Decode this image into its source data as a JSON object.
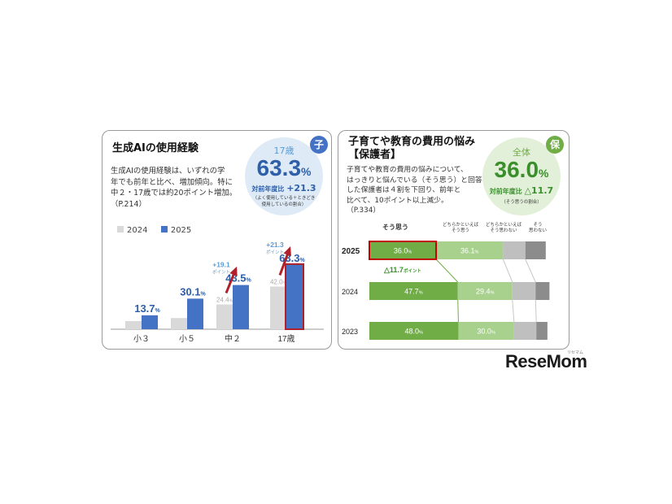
{
  "left": {
    "title": "生成AIの使用経験",
    "badge": "子",
    "description": [
      "生成AIの使用経験は、いずれの学",
      "年でも前年と比べ、増加傾向。特に",
      "中２・17歳では約20ポイント増加。",
      "（P.214）"
    ],
    "highlight": {
      "label": "17歳",
      "value": "63.3",
      "unit": "%",
      "compare_label": "対前年度比",
      "compare_value": "+21.3",
      "note": [
        "（よく使用している＋ときどき",
        "使用しているの割合）"
      ]
    },
    "legend": [
      "2024",
      "2025"
    ],
    "colors": {
      "y2024": "#d9d9d9",
      "y2025": "#4472c4",
      "label2025": "#2e5fa8",
      "arrow": "#b0202a",
      "increase": "#5b9bd5",
      "circle": "#deebf7",
      "badge": "#4472c4"
    }
  },
  "right": {
    "title": [
      "子育てや教育の費用の悩み",
      "【保護者】"
    ],
    "badge": "保",
    "description": [
      "子育てや教育の費用の悩みについて、",
      "はっきりと悩んでいる（そう思う）と回答",
      "した保護者は４割を下回り、前年と",
      "比べて、10ポイント以上減少。",
      "（P.334）"
    ],
    "highlight": {
      "label": "全体",
      "value": "36.0",
      "unit": "%",
      "compare_label": "対前年度比",
      "compare_value": "△11.7",
      "note": "（そう思うの割合）"
    },
    "headers": [
      "そう思う",
      "どちらかといえば\nそう思う",
      "どちらかといえば\nそう思わない",
      "そう\n思わない"
    ],
    "change_label": "△11.7",
    "change_unit": "ポイント",
    "colors": {
      "c1": "#70ad47",
      "c2": "#a9d18e",
      "c3": "#bfbfbf",
      "c4": "#8c8c8c",
      "highlight": "#c00000",
      "circle": "#e2f0d9",
      "badge": "#70ad47",
      "value": "#3a8f2c"
    }
  },
  "chart_data": [
    {
      "type": "bar",
      "title": "生成AIの使用経験",
      "categories": [
        "小３",
        "小５",
        "中２",
        "17歳"
      ],
      "series": [
        {
          "name": "2024",
          "values": [
            null,
            null,
            24.4,
            42.0
          ],
          "labels": [
            "",
            "",
            "24.4",
            "42.0"
          ]
        },
        {
          "name": "2025",
          "values": [
            13.7,
            30.1,
            43.5,
            63.3
          ],
          "labels": [
            "13.7",
            "30.1",
            "43.5",
            "63.3"
          ]
        }
      ],
      "annotations": [
        {
          "category": "中２",
          "text": "+19.1",
          "subtext": "ポイント"
        },
        {
          "category": "17歳",
          "text": "+21.3",
          "subtext": "ポイント"
        }
      ],
      "unit": "%",
      "ylim": [
        0,
        70
      ],
      "legend": "top-left"
    },
    {
      "type": "bar",
      "orientation": "horizontal-stacked",
      "title": "子育てや教育の費用の悩み【保護者】",
      "categories": [
        "2025",
        "2024",
        "2023"
      ],
      "series": [
        {
          "name": "そう思う",
          "values": [
            36.0,
            47.7,
            48.0
          ]
        },
        {
          "name": "どちらかといえばそう思う",
          "values": [
            36.1,
            29.4,
            30.0
          ]
        },
        {
          "name": "どちらかといえばそう思わない",
          "values": [
            12.0,
            12.5,
            12.0
          ]
        },
        {
          "name": "そう思わない",
          "values": [
            11.0,
            7.5,
            6.0
          ]
        }
      ],
      "annotations": [
        {
          "text": "△11.7",
          "subtext": "ポイント"
        }
      ],
      "unit": "%",
      "legend": "top"
    }
  ],
  "brand": {
    "text": "ReseMom",
    "small": "リセマム"
  }
}
